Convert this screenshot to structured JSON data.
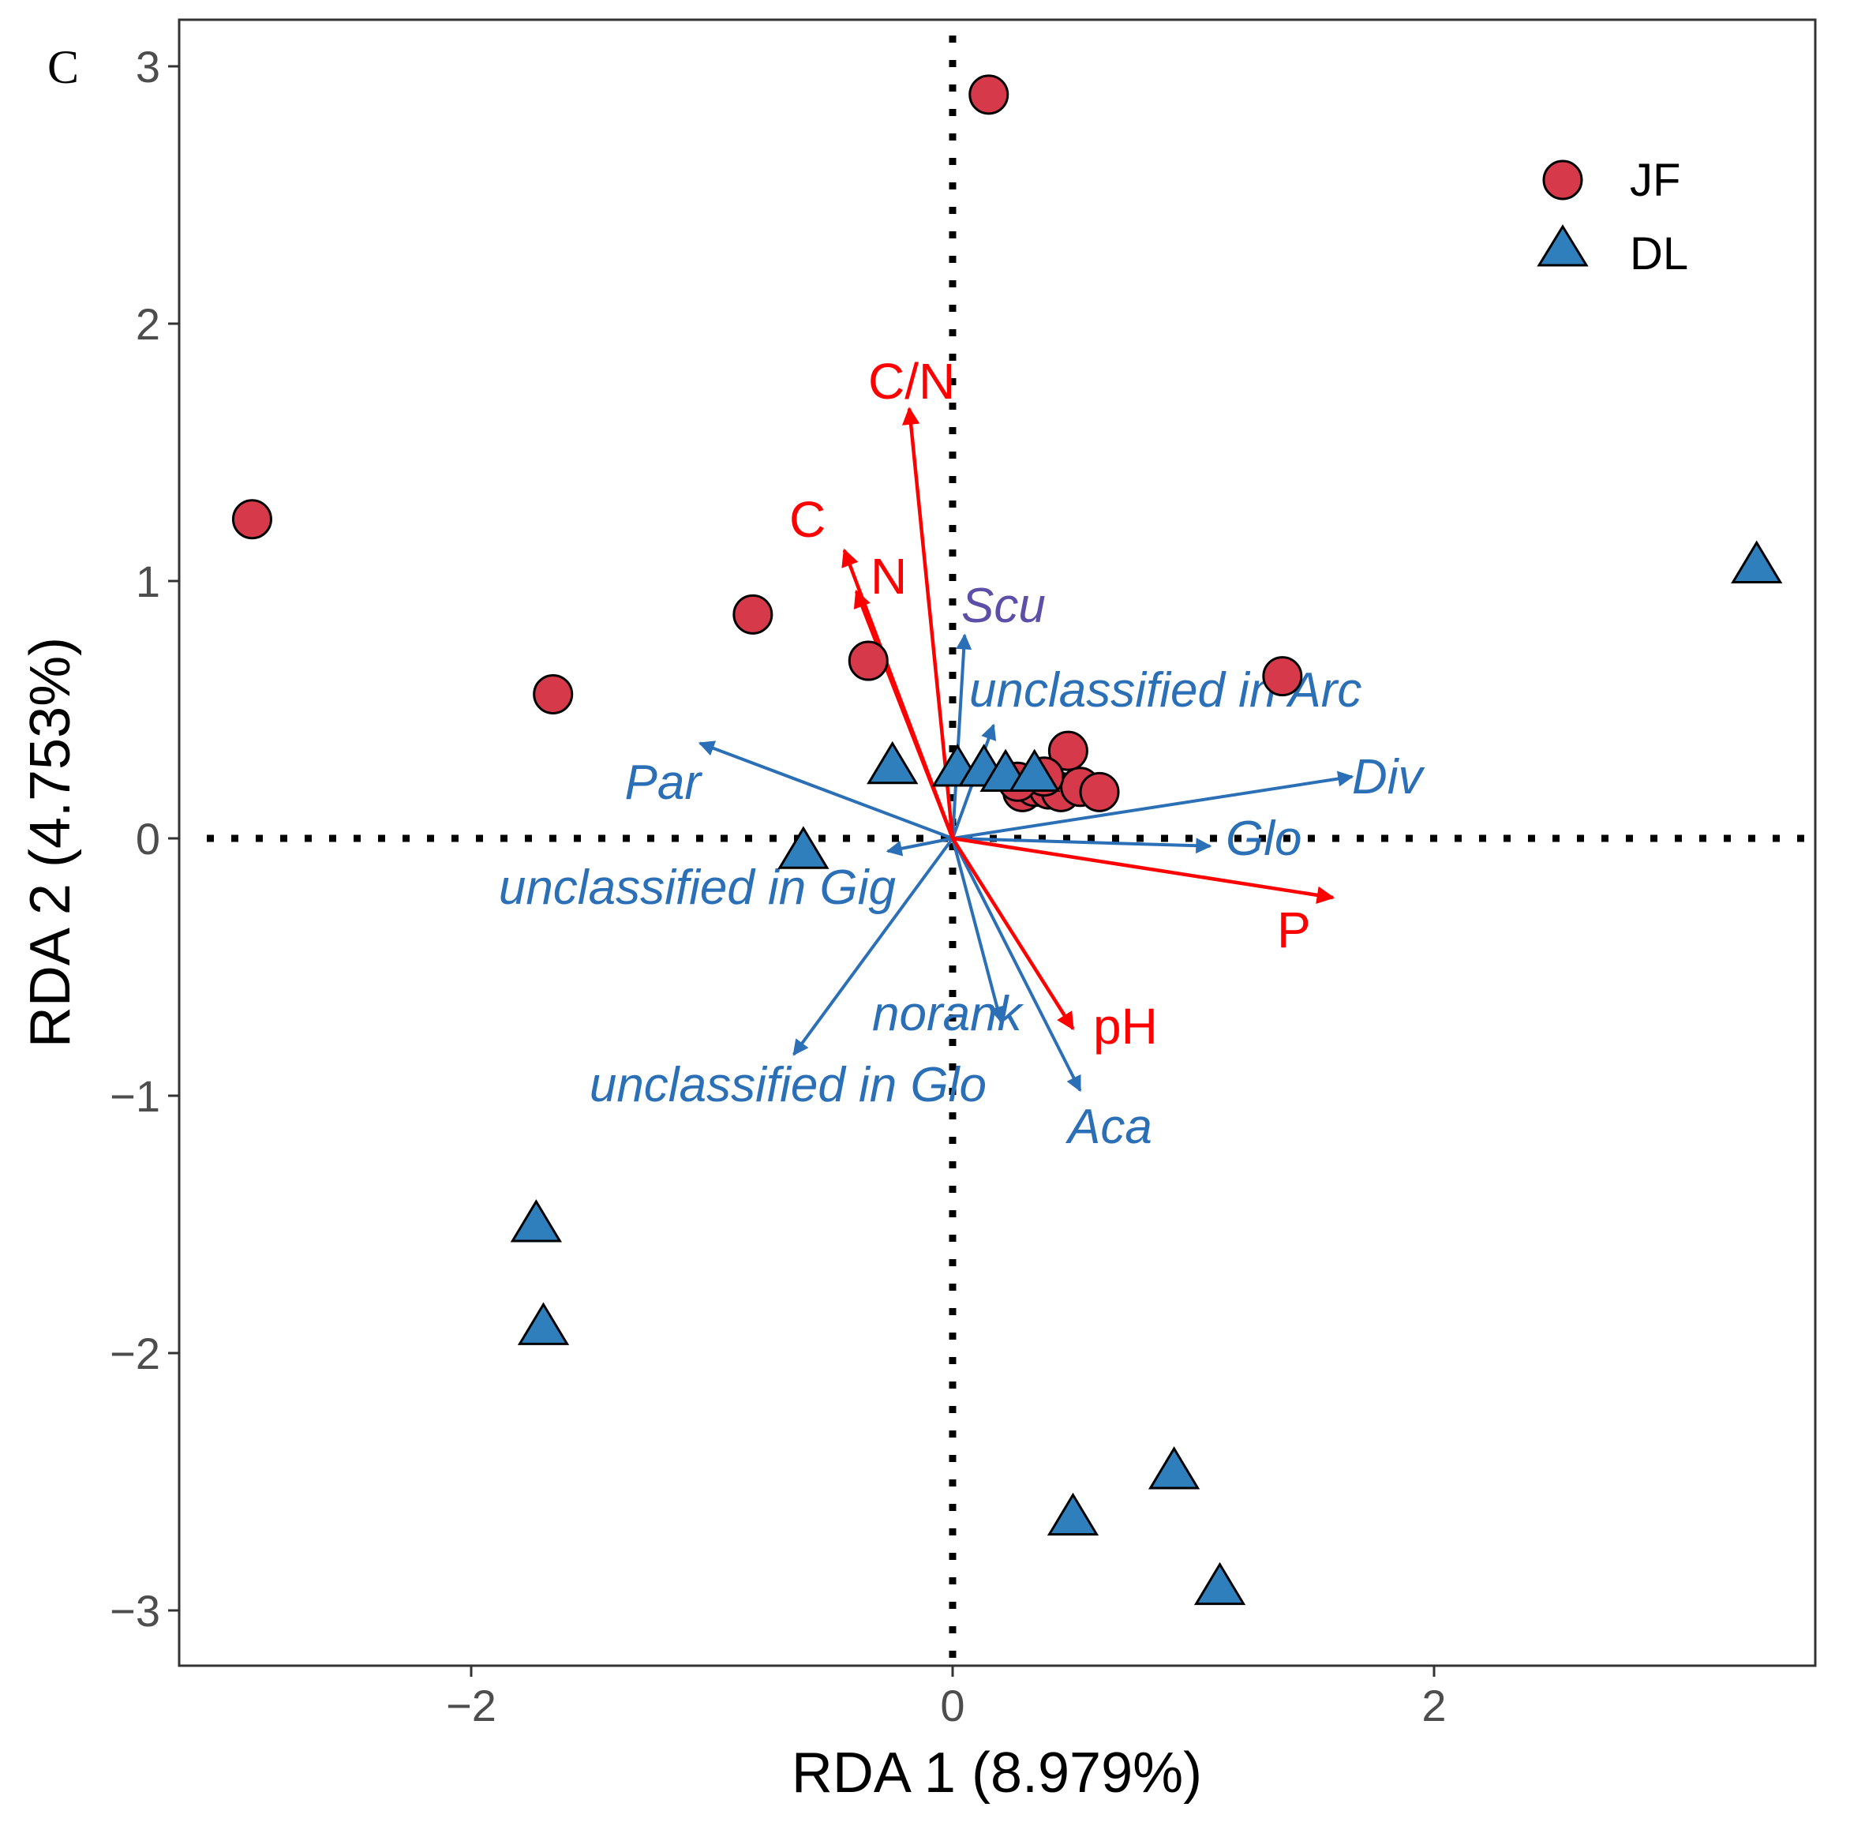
{
  "panel_label": "C",
  "chart_data": {
    "type": "scatter",
    "subtype": "rda-biplot",
    "xlabel": "RDA 1 (8.979%)",
    "ylabel": "RDA 2 (4.753%)",
    "xlim": [
      -3.2,
      3.6
    ],
    "ylim": [
      -3.2,
      3.2
    ],
    "x_ticks": [
      -2,
      0,
      2
    ],
    "x_tick_labels": [
      "−2",
      "0",
      "2"
    ],
    "y_ticks": [
      -3,
      -2,
      -1,
      0,
      1,
      2,
      3
    ],
    "y_tick_labels": [
      "−3",
      "−2",
      "−1",
      "0",
      "1",
      "2",
      "3"
    ],
    "grid": false,
    "reference_lines": [
      {
        "axis": "x",
        "value": 0,
        "style": "dotted"
      },
      {
        "axis": "y",
        "value": 0,
        "style": "dotted"
      }
    ],
    "legend": {
      "position": "top-right",
      "entries": [
        "JF",
        "DL"
      ]
    },
    "colors": {
      "JF": "#d63a4a",
      "DL": "#2f7fbc",
      "env": "#ff0000",
      "taxa": "#2b6fb6",
      "taxa_alt": "#5b4fa8"
    },
    "series": [
      {
        "name": "JF",
        "marker": "circle",
        "points": [
          [
            -2.91,
            1.24
          ],
          [
            0.15,
            2.89
          ],
          [
            -0.83,
            0.87
          ],
          [
            -1.66,
            0.56
          ],
          [
            -0.35,
            0.69
          ],
          [
            1.37,
            0.63
          ],
          [
            0.48,
            0.34
          ],
          [
            0.29,
            0.18
          ],
          [
            0.34,
            0.2
          ],
          [
            0.4,
            0.19
          ],
          [
            0.45,
            0.18
          ],
          [
            0.53,
            0.2
          ],
          [
            0.61,
            0.18
          ],
          [
            0.38,
            0.24
          ],
          [
            0.27,
            0.22
          ]
        ]
      },
      {
        "name": "DL",
        "marker": "triangle",
        "points": [
          [
            3.34,
            1.06
          ],
          [
            -0.25,
            0.28
          ],
          [
            0.02,
            0.27
          ],
          [
            0.13,
            0.27
          ],
          [
            0.22,
            0.25
          ],
          [
            0.34,
            0.25
          ],
          [
            -0.62,
            -0.05
          ],
          [
            -1.73,
            -1.5
          ],
          [
            -1.7,
            -1.9
          ],
          [
            0.92,
            -2.46
          ],
          [
            0.5,
            -2.64
          ],
          [
            1.11,
            -2.91
          ]
        ]
      }
    ],
    "env_arrows": [
      {
        "label": "C/N",
        "x": -0.18,
        "y": 1.67
      },
      {
        "label": "C",
        "x": -0.45,
        "y": 1.12
      },
      {
        "label": "N",
        "x": -0.4,
        "y": 0.96
      },
      {
        "label": "P",
        "x": 1.58,
        "y": -0.23
      },
      {
        "label": "pH",
        "x": 0.5,
        "y": -0.74
      }
    ],
    "taxa_arrows": [
      {
        "label": "Scu",
        "x": 0.05,
        "y": 0.79
      },
      {
        "label": "unclassified in Arc",
        "x": 0.17,
        "y": 0.44
      },
      {
        "label": "Par",
        "x": -1.05,
        "y": 0.37
      },
      {
        "label": "Div",
        "x": 1.66,
        "y": 0.24
      },
      {
        "label": "Glo",
        "x": 1.07,
        "y": -0.03
      },
      {
        "label": "unclassified in Gig",
        "x": -0.27,
        "y": -0.05
      },
      {
        "label": "norank",
        "x": 0.2,
        "y": -0.71
      },
      {
        "label": "unclassified in Glo",
        "x": -0.66,
        "y": -0.84
      },
      {
        "label": "Aca",
        "x": 0.53,
        "y": -0.98
      }
    ]
  }
}
